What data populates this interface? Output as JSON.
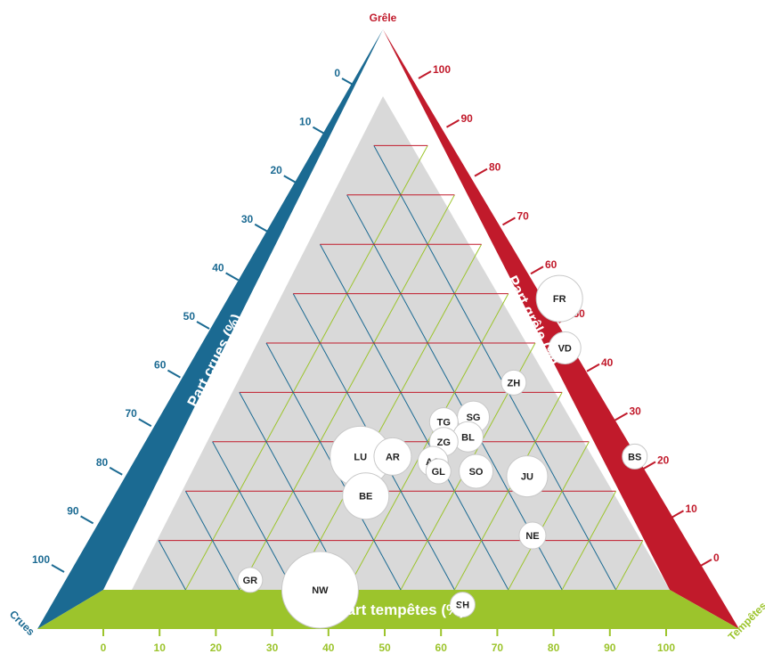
{
  "chart_data": {
    "type": "scatter",
    "subtype": "ternary-bubble",
    "corners": {
      "top": "Grêle",
      "left": "Crues",
      "right": "Tempêtes"
    },
    "axis_titles": {
      "left": "Part crues (%)",
      "right": "Part grêle (%)",
      "bottom": "Part tempêtes (%)"
    },
    "ticks": {
      "left": [
        "0",
        "10",
        "20",
        "30",
        "40",
        "50",
        "60",
        "70",
        "80",
        "90",
        "100"
      ],
      "right": [
        "100",
        "90",
        "80",
        "70",
        "60",
        "50",
        "40",
        "30",
        "20",
        "10",
        "0"
      ],
      "bottom": [
        "0",
        "10",
        "20",
        "30",
        "40",
        "50",
        "60",
        "70",
        "80",
        "90",
        "100"
      ]
    },
    "grid": true,
    "colors": {
      "crues": "#1b6a92",
      "grele": "#c11a2b",
      "tempetes": "#9cc42c",
      "plot_bg": "#d9d9d9",
      "grid_crues": "#1b6a92",
      "grid_grele": "#c11a2b",
      "grid_tempetes": "#9cc42c"
    },
    "points": [
      {
        "label": "FR",
        "grele": 59,
        "tempetes": 50,
        "crues": -9,
        "size": 26
      },
      {
        "label": "VD",
        "grele": 49,
        "tempetes": 56,
        "crues": -5,
        "size": 18
      },
      {
        "label": "ZH",
        "grele": 42,
        "tempetes": 50,
        "crues": 8,
        "size": 14
      },
      {
        "label": "SG",
        "grele": 35,
        "tempetes": 46,
        "crues": 19,
        "size": 18
      },
      {
        "label": "TG",
        "grele": 34,
        "tempetes": 41,
        "crues": 25,
        "size": 16
      },
      {
        "label": "BL",
        "grele": 31,
        "tempetes": 47,
        "crues": 22,
        "size": 17
      },
      {
        "label": "ZG",
        "grele": 30,
        "tempetes": 43,
        "crues": 27,
        "size": 16
      },
      {
        "label": "LU",
        "grele": 27,
        "tempetes": 29,
        "crues": 44,
        "size": 34
      },
      {
        "label": "AR",
        "grele": 27,
        "tempetes": 35,
        "crues": 38,
        "size": 21
      },
      {
        "label": "AG",
        "grele": 26,
        "tempetes": 43,
        "crues": 31,
        "size": 17
      },
      {
        "label": "GL",
        "grele": 24,
        "tempetes": 45,
        "crues": 31,
        "size": 14
      },
      {
        "label": "SO",
        "grele": 24,
        "tempetes": 52,
        "crues": 24,
        "size": 19
      },
      {
        "label": "JU",
        "grele": 23,
        "tempetes": 62,
        "crues": 15,
        "size": 23
      },
      {
        "label": "BS",
        "grele": 27,
        "tempetes": 80,
        "crues": -7,
        "size": 14
      },
      {
        "label": "BE",
        "grele": 19,
        "tempetes": 34,
        "crues": 47,
        "size": 26
      },
      {
        "label": "NE",
        "grele": 11,
        "tempetes": 69,
        "crues": 20,
        "size": 15
      },
      {
        "label": "GR",
        "grele": 2,
        "tempetes": 21,
        "crues": 77,
        "size": 14
      },
      {
        "label": "NW",
        "grele": 0,
        "tempetes": 35,
        "crues": 65,
        "size": 43
      },
      {
        "label": "SH",
        "grele": -3,
        "tempetes": 63,
        "crues": 40,
        "size": 14
      }
    ]
  }
}
